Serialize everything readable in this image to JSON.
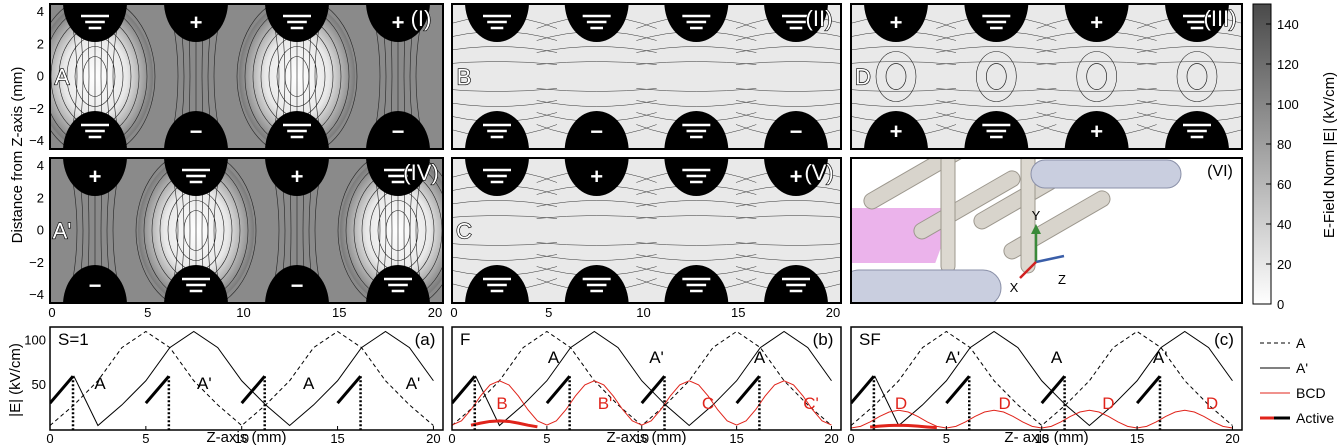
{
  "field_panels": [
    {
      "label": "(I)",
      "region": "A",
      "top": [
        "eq",
        "+",
        "eq",
        "+"
      ],
      "bottom": [
        "eq",
        "−",
        "eq",
        "−"
      ],
      "style": "alternating"
    },
    {
      "label": "(II)",
      "region": "B",
      "top": [
        "eq",
        "eq",
        "eq",
        "eq"
      ],
      "bottom": [
        "eq",
        "−",
        "eq",
        "−"
      ],
      "style": "half"
    },
    {
      "label": "(III)",
      "region": "D",
      "top": [
        "+",
        "eq",
        "+",
        "eq"
      ],
      "bottom": [
        "+",
        "eq",
        "+",
        "eq"
      ],
      "style": "symmetric"
    },
    {
      "label": "(IV)",
      "region": "A'",
      "top": [
        "+",
        "eq",
        "+",
        "eq"
      ],
      "bottom": [
        "−",
        "eq",
        "−",
        "eq"
      ],
      "style": "alternating_shift"
    },
    {
      "label": "(V)",
      "region": "C",
      "top": [
        "eq",
        "+",
        "eq",
        "+"
      ],
      "bottom": [
        "eq",
        "eq",
        "eq",
        "eq"
      ],
      "style": "half_top"
    }
  ],
  "render_panel": {
    "label": "(VI)",
    "axis_x": "X",
    "axis_y": "Y",
    "axis_z": "Z"
  },
  "field_axes": {
    "ylabel": "Distance from Z-axis (mm)",
    "yticks": [
      "4",
      "2",
      "0",
      "−2",
      "−4"
    ],
    "xticks": [
      "0",
      "5",
      "10",
      "15",
      "20"
    ]
  },
  "colorbar": {
    "label": "E-Field Norm |E| (kV/cm)",
    "ticks": [
      "140",
      "120",
      "100",
      "80",
      "60",
      "40",
      "20",
      "0"
    ],
    "range": [
      0,
      150
    ]
  },
  "chart_data": [
    {
      "type": "line",
      "panel_label": "(a)",
      "corner_text": "S=1",
      "xlabel": "Z-axis (mm)",
      "ylabel": "|E|  (kV/cm)",
      "xlim": [
        0,
        20.5
      ],
      "ylim": [
        0,
        115
      ],
      "xticks": [
        "0",
        "5",
        "10",
        "15",
        "20"
      ],
      "yticks": [
        "50",
        "100"
      ],
      "region_labels": [
        "A",
        "A'",
        "A",
        "A'"
      ],
      "series": [
        {
          "name": "A",
          "x": [
            0,
            1.25,
            2.5,
            3.75,
            5,
            6.25,
            7.5,
            8.75,
            10,
            11.25,
            12.5,
            13.75,
            15,
            16.25,
            17.5,
            18.75,
            20
          ],
          "y": [
            5,
            28,
            55,
            92,
            110,
            92,
            55,
            28,
            5,
            28,
            55,
            92,
            110,
            92,
            55,
            28,
            5
          ]
        },
        {
          "name": "A'",
          "x": [
            0,
            1.25,
            2.5,
            3.75,
            5,
            6.25,
            7.5,
            8.75,
            10,
            11.25,
            12.5,
            13.75,
            15,
            16.25,
            17.5,
            18.75,
            20
          ],
          "y": [
            30,
            60,
            5,
            28,
            55,
            92,
            110,
            92,
            55,
            28,
            5,
            28,
            55,
            92,
            110,
            92,
            55
          ]
        }
      ]
    },
    {
      "type": "line",
      "panel_label": "(b)",
      "corner_text": "F",
      "xlabel": "Z-axis (mm)",
      "xlim": [
        0,
        20.5
      ],
      "ylim": [
        0,
        115
      ],
      "xticks": [
        "0",
        "5",
        "10",
        "15",
        "20"
      ],
      "region_labels": [
        "B",
        "A",
        "B'",
        "A'",
        "C",
        "A",
        "C'"
      ],
      "series": [
        {
          "name": "A"
        },
        {
          "name": "A'"
        },
        {
          "name": "BCD",
          "y_max": 55
        }
      ]
    },
    {
      "type": "line",
      "panel_label": "(c)",
      "corner_text": "SF",
      "xlabel": "Z- axis (mm)",
      "xlim": [
        0,
        20.5
      ],
      "ylim": [
        0,
        115
      ],
      "xticks": [
        "0",
        "5",
        "10",
        "15",
        "20"
      ],
      "region_labels": [
        "D",
        "A'",
        "D",
        "A",
        "D",
        "A'",
        "D"
      ],
      "series": [
        {
          "name": "A"
        },
        {
          "name": "A'"
        },
        {
          "name": "BCD",
          "y_max": 22
        }
      ]
    }
  ],
  "legend": [
    {
      "name": "A",
      "style": "dashed",
      "color": "#000000"
    },
    {
      "name": "A'",
      "style": "solid-thin",
      "color": "#000000"
    },
    {
      "name": "BCD",
      "style": "solid-thin",
      "color": "#e0241b"
    },
    {
      "name": "Active",
      "style": "solid-thick",
      "color": "#000000"
    }
  ]
}
